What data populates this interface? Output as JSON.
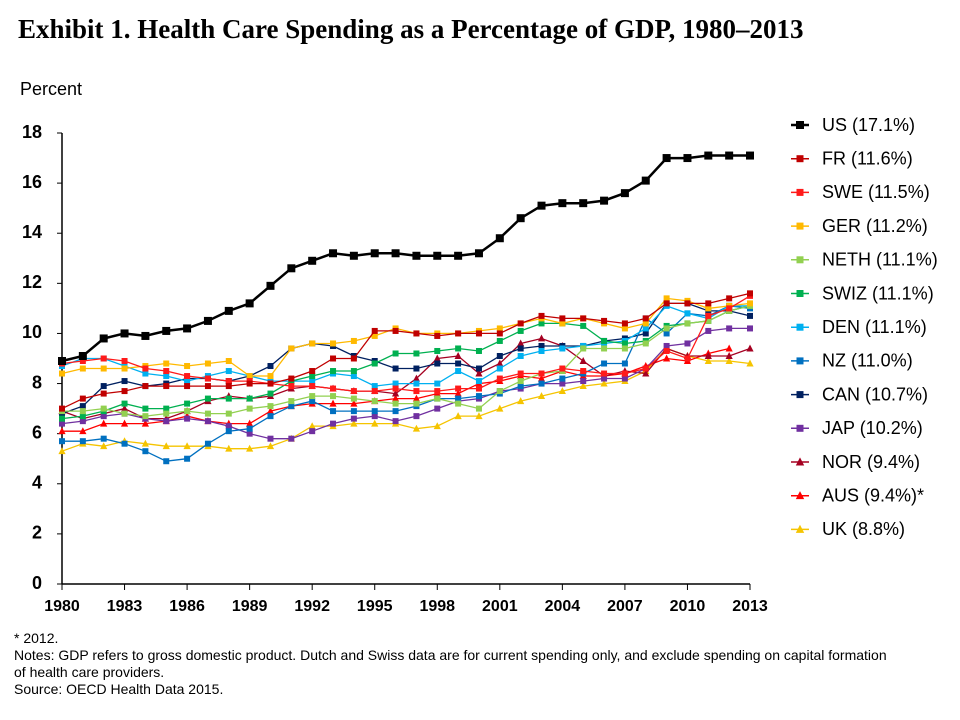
{
  "chart_data": {
    "type": "line",
    "title": "Exhibit 1. Health Care Spending as a Percentage of GDP, 1980–2013",
    "y_label": "Percent",
    "footnote": "* 2012.",
    "notes": "Notes: GDP refers to gross domestic product. Dutch and Swiss data are for current spending only, and exclude spending on capital formation of health care providers.",
    "source": "Source: OECD Health Data 2015.",
    "x": [
      1980,
      1981,
      1982,
      1983,
      1984,
      1985,
      1986,
      1987,
      1988,
      1989,
      1990,
      1991,
      1992,
      1993,
      1994,
      1995,
      1996,
      1997,
      1998,
      1999,
      2000,
      2001,
      2002,
      2003,
      2004,
      2005,
      2006,
      2007,
      2008,
      2009,
      2010,
      2011,
      2012,
      2013
    ],
    "xlim": [
      1980,
      2013
    ],
    "xticks": [
      1980,
      1983,
      1986,
      1989,
      1992,
      1995,
      1998,
      2001,
      2004,
      2007,
      2010,
      2013
    ],
    "ylim": [
      0,
      18
    ],
    "yticks": [
      0,
      2,
      4,
      6,
      8,
      10,
      12,
      14,
      16,
      18
    ],
    "grid": false,
    "legend": "right",
    "series": [
      {
        "name": "US (17.1%)",
        "color": "#000000",
        "marker": "square",
        "values": [
          8.9,
          9.1,
          9.8,
          10.0,
          9.9,
          10.1,
          10.2,
          10.5,
          10.9,
          11.2,
          11.9,
          12.6,
          12.9,
          13.2,
          13.1,
          13.2,
          13.2,
          13.1,
          13.1,
          13.1,
          13.2,
          13.8,
          14.6,
          15.1,
          15.2,
          15.2,
          15.3,
          15.6,
          16.1,
          17.0,
          17.0,
          17.1,
          17.1,
          17.1
        ]
      },
      {
        "name": "FR (11.6%)",
        "color": "#c00000",
        "marker": "square",
        "values": [
          7.0,
          7.4,
          7.6,
          7.7,
          7.9,
          7.9,
          7.9,
          7.9,
          7.9,
          8.0,
          8.0,
          8.2,
          8.5,
          9.0,
          9.0,
          10.1,
          10.1,
          10.0,
          9.9,
          10.0,
          10.0,
          10.0,
          10.4,
          10.7,
          10.6,
          10.6,
          10.5,
          10.4,
          10.6,
          11.2,
          11.2,
          11.2,
          11.4,
          11.6
        ]
      },
      {
        "name": "SWE (11.5%)",
        "color": "#ff1a1a",
        "marker": "square",
        "values": [
          8.8,
          8.9,
          9.0,
          8.9,
          8.6,
          8.5,
          8.3,
          8.2,
          8.1,
          8.1,
          8.0,
          7.9,
          7.9,
          7.8,
          7.7,
          7.7,
          7.8,
          7.7,
          7.7,
          7.8,
          7.8,
          8.2,
          8.4,
          8.4,
          8.6,
          8.5,
          8.4,
          8.4,
          8.6,
          9.3,
          9.0,
          10.7,
          11.0,
          11.5
        ]
      },
      {
        "name": "GER (11.2%)",
        "color": "#ffb900",
        "marker": "square",
        "values": [
          8.4,
          8.6,
          8.6,
          8.6,
          8.7,
          8.8,
          8.7,
          8.8,
          8.9,
          8.3,
          8.3,
          9.4,
          9.6,
          9.6,
          9.7,
          9.9,
          10.2,
          10.0,
          10.0,
          10.0,
          10.1,
          10.2,
          10.4,
          10.6,
          10.4,
          10.6,
          10.4,
          10.2,
          10.4,
          11.4,
          11.3,
          11.0,
          11.1,
          11.2
        ]
      },
      {
        "name": "NETH (11.1%)",
        "color": "#92d050",
        "marker": "square",
        "values": [
          6.9,
          6.9,
          7.0,
          6.8,
          6.7,
          6.8,
          6.9,
          6.8,
          6.8,
          7.0,
          7.1,
          7.3,
          7.5,
          7.5,
          7.4,
          7.3,
          7.2,
          7.2,
          7.4,
          7.2,
          7.0,
          7.7,
          8.1,
          8.4,
          8.5,
          9.4,
          9.4,
          9.4,
          9.6,
          10.2,
          10.4,
          10.5,
          10.9,
          11.1
        ]
      },
      {
        "name": "SWIZ (11.1%)",
        "color": "#00b050",
        "marker": "square",
        "values": [
          6.6,
          6.7,
          6.9,
          7.2,
          7.0,
          7.0,
          7.2,
          7.4,
          7.4,
          7.4,
          7.6,
          8.1,
          8.3,
          8.5,
          8.5,
          8.8,
          9.2,
          9.2,
          9.3,
          9.4,
          9.3,
          9.7,
          10.1,
          10.4,
          10.4,
          10.3,
          9.7,
          9.6,
          9.7,
          10.3,
          10.4,
          10.5,
          10.9,
          11.1
        ]
      },
      {
        "name": "DEN (11.1%)",
        "color": "#00b0f0",
        "marker": "square",
        "values": [
          8.7,
          9.0,
          9.0,
          8.7,
          8.4,
          8.3,
          8.1,
          8.3,
          8.5,
          8.3,
          8.1,
          8.1,
          8.1,
          8.4,
          8.3,
          7.9,
          8.0,
          8.0,
          8.0,
          8.5,
          8.1,
          8.6,
          9.1,
          9.3,
          9.4,
          9.5,
          9.6,
          9.7,
          10.2,
          11.1,
          10.8,
          10.6,
          11.1,
          11.1
        ]
      },
      {
        "name": "NZ (11.0%)",
        "color": "#0070c0",
        "marker": "square",
        "values": [
          5.7,
          5.7,
          5.8,
          5.6,
          5.3,
          4.9,
          5.0,
          5.6,
          6.1,
          6.2,
          6.7,
          7.1,
          7.3,
          6.9,
          6.9,
          6.9,
          6.9,
          7.1,
          7.4,
          7.4,
          7.5,
          7.6,
          7.9,
          8.0,
          8.2,
          8.4,
          8.8,
          8.8,
          10.6,
          10.0,
          10.8,
          10.7,
          11.1,
          11.0
        ]
      },
      {
        "name": "CAN (10.7%)",
        "color": "#002060",
        "marker": "square",
        "values": [
          6.8,
          7.1,
          7.9,
          8.1,
          7.9,
          8.0,
          8.2,
          8.2,
          8.1,
          8.3,
          8.7,
          9.4,
          9.6,
          9.5,
          9.1,
          8.9,
          8.6,
          8.6,
          8.8,
          8.8,
          8.6,
          9.1,
          9.4,
          9.5,
          9.5,
          9.5,
          9.7,
          9.8,
          10.0,
          11.2,
          11.2,
          10.9,
          10.9,
          10.7
        ]
      },
      {
        "name": "JAP (10.2%)",
        "color": "#7030a0",
        "marker": "square",
        "values": [
          6.4,
          6.5,
          6.7,
          6.8,
          6.6,
          6.5,
          6.6,
          6.5,
          6.3,
          6.0,
          5.8,
          5.8,
          6.1,
          6.4,
          6.6,
          6.7,
          6.5,
          6.7,
          7.0,
          7.3,
          7.4,
          7.7,
          7.8,
          8.0,
          8.0,
          8.1,
          8.2,
          8.2,
          8.6,
          9.5,
          9.6,
          10.1,
          10.2,
          10.2
        ]
      },
      {
        "name": "NOR (9.4%)",
        "color": "#a50021",
        "marker": "triangle",
        "values": [
          6.9,
          6.6,
          6.8,
          7.0,
          6.6,
          6.6,
          6.9,
          7.3,
          7.5,
          7.4,
          7.5,
          7.8,
          7.9,
          7.8,
          7.7,
          7.7,
          7.6,
          8.2,
          9.0,
          9.1,
          8.4,
          8.8,
          9.6,
          9.8,
          9.5,
          8.9,
          8.3,
          8.5,
          8.4,
          9.4,
          9.1,
          9.1,
          9.1,
          9.4
        ]
      },
      {
        "name": "AUS (9.4%)*",
        "color": "#ff0000",
        "marker": "triangle",
        "values": [
          6.1,
          6.1,
          6.4,
          6.4,
          6.4,
          6.5,
          6.7,
          6.5,
          6.4,
          6.4,
          6.9,
          7.1,
          7.2,
          7.2,
          7.2,
          7.3,
          7.4,
          7.4,
          7.6,
          7.6,
          8.0,
          8.1,
          8.3,
          8.2,
          8.5,
          8.3,
          8.3,
          8.4,
          8.7,
          9.0,
          8.9,
          9.2,
          9.4,
          null
        ]
      },
      {
        "name": "UK (8.8%)",
        "color": "#f5c400",
        "marker": "triangle",
        "values": [
          5.3,
          5.6,
          5.5,
          5.7,
          5.6,
          5.5,
          5.5,
          5.5,
          5.4,
          5.4,
          5.5,
          5.8,
          6.3,
          6.3,
          6.4,
          6.4,
          6.4,
          6.2,
          6.3,
          6.7,
          6.7,
          7.0,
          7.3,
          7.5,
          7.7,
          7.9,
          8.0,
          8.1,
          8.5,
          9.4,
          9.1,
          8.9,
          8.9,
          8.8
        ]
      }
    ]
  }
}
